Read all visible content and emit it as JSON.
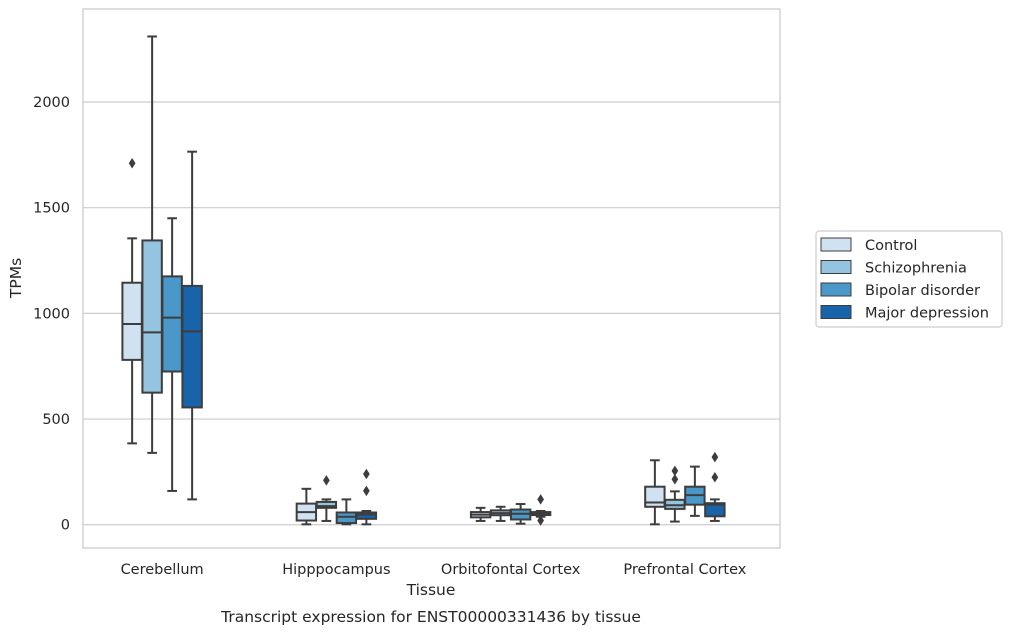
{
  "caption": "Transcript expression for ENST00000331436 by tissue",
  "chart_data": {
    "type": "box",
    "xlabel": "Tissue",
    "ylabel": "TPMs",
    "ylim": [
      -110,
      2440
    ],
    "yticks": [
      0,
      500,
      1000,
      1500,
      2000
    ],
    "grid": "horizontal",
    "legend_position": "right",
    "categories": [
      "Cerebellum",
      "Hipppocampus",
      "Orbitofontal Cortex",
      "Prefrontal Cortex"
    ],
    "series": [
      {
        "name": "Control",
        "color": "#d0e1f2",
        "boxes": [
          {
            "whisker_low": 385,
            "q1": 780,
            "median": 950,
            "q3": 1145,
            "whisker_high": 1355,
            "outliers": [
              1710
            ]
          },
          {
            "whisker_low": 2,
            "q1": 20,
            "median": 60,
            "q3": 100,
            "whisker_high": 170,
            "outliers": []
          },
          {
            "whisker_low": 18,
            "q1": 35,
            "median": 48,
            "q3": 60,
            "whisker_high": 80,
            "outliers": []
          },
          {
            "whisker_low": 2,
            "q1": 85,
            "median": 105,
            "q3": 180,
            "whisker_high": 305,
            "outliers": []
          }
        ]
      },
      {
        "name": "Schizophrenia",
        "color": "#94c4df",
        "boxes": [
          {
            "whisker_low": 340,
            "q1": 625,
            "median": 910,
            "q3": 1345,
            "whisker_high": 2310,
            "outliers": []
          },
          {
            "whisker_low": 18,
            "q1": 80,
            "median": 88,
            "q3": 108,
            "whisker_high": 120,
            "outliers": [
              210
            ]
          },
          {
            "whisker_low": 18,
            "q1": 45,
            "median": 55,
            "q3": 68,
            "whisker_high": 85,
            "outliers": []
          },
          {
            "whisker_low": 15,
            "q1": 75,
            "median": 92,
            "q3": 118,
            "whisker_high": 158,
            "outliers": [
              215,
              255
            ]
          }
        ]
      },
      {
        "name": "Bipolar disorder",
        "color": "#4a98c9",
        "boxes": [
          {
            "whisker_low": 160,
            "q1": 725,
            "median": 980,
            "q3": 1175,
            "whisker_high": 1450,
            "outliers": []
          },
          {
            "whisker_low": 2,
            "q1": 8,
            "median": 38,
            "q3": 58,
            "whisker_high": 120,
            "outliers": []
          },
          {
            "whisker_low": 5,
            "q1": 25,
            "median": 52,
            "q3": 72,
            "whisker_high": 98,
            "outliers": []
          },
          {
            "whisker_low": 42,
            "q1": 95,
            "median": 140,
            "q3": 180,
            "whisker_high": 275,
            "outliers": []
          }
        ]
      },
      {
        "name": "Major depression",
        "color": "#1764ab",
        "boxes": [
          {
            "whisker_low": 120,
            "q1": 555,
            "median": 915,
            "q3": 1130,
            "whisker_high": 1765,
            "outliers": []
          },
          {
            "whisker_low": 2,
            "q1": 28,
            "median": 48,
            "q3": 58,
            "whisker_high": 65,
            "outliers": [
              160,
              240
            ]
          },
          {
            "whisker_low": 38,
            "q1": 46,
            "median": 52,
            "q3": 60,
            "whisker_high": 65,
            "outliers": [
              20,
              120
            ]
          },
          {
            "whisker_low": 18,
            "q1": 40,
            "median": 95,
            "q3": 102,
            "whisker_high": 120,
            "outliers": [
              225,
              320
            ]
          }
        ]
      }
    ]
  }
}
